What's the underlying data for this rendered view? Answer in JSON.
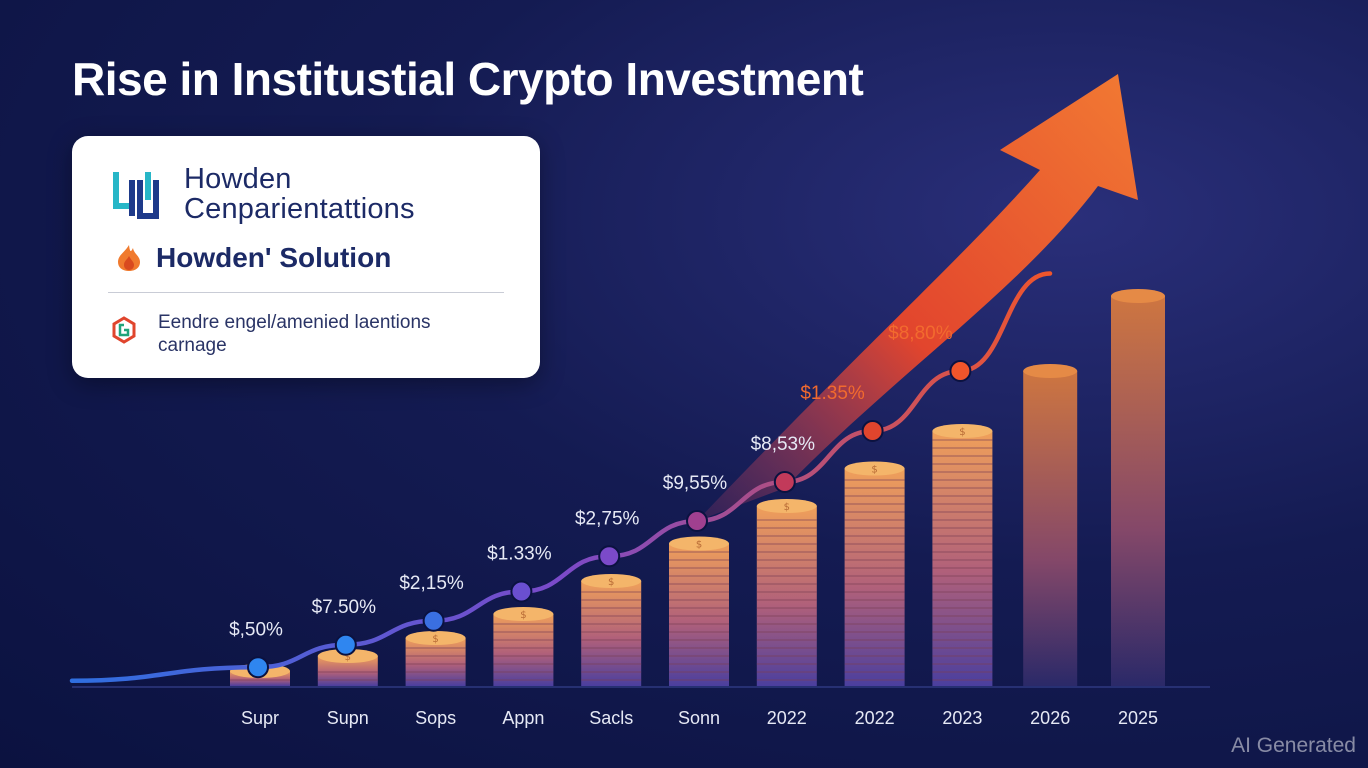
{
  "title": "Rise in Institustial Crypto Investment",
  "card": {
    "brand_name": "Howden",
    "brand_sub": "Cenparientattions",
    "solution_label": "Howden' Solution",
    "feature_line1": "Eendre engel/amenied laentions",
    "feature_line2": "carnage"
  },
  "watermark": "AI Generated",
  "colors": {
    "line_start": "#2f6fe0",
    "line_mid": "#7b4ac9",
    "line_end": "#f0552b",
    "arrow": "#f26a2e",
    "coin_top": "#f29a52",
    "coin_bottom": "#4b3f9e"
  },
  "chart_data": {
    "type": "bar",
    "categories": [
      "Supr",
      "Supn",
      "Sops",
      "Appn",
      "Sacls",
      "Sonn",
      "2022",
      "2022",
      "2023",
      "2026",
      "2025"
    ],
    "values": [
      1.0,
      2.0,
      3.2,
      4.8,
      7.0,
      9.5,
      12.0,
      14.5,
      17.0,
      21.0,
      26.0
    ],
    "ylim": [
      0,
      28
    ],
    "trend_line": {
      "labels": [
        "$,50%",
        "$7.50%",
        "$2,15%",
        "$1.33%",
        "$2,75%",
        "$9,55%",
        "$8,53%",
        "$1.35%",
        "$8,80%"
      ],
      "positions": [
        2.5,
        5.5,
        8.7,
        12.6,
        17.3,
        22.0,
        27.2,
        34.0,
        42.0
      ],
      "ylim": [
        0,
        64
      ]
    },
    "grid": false,
    "legend": "none"
  }
}
